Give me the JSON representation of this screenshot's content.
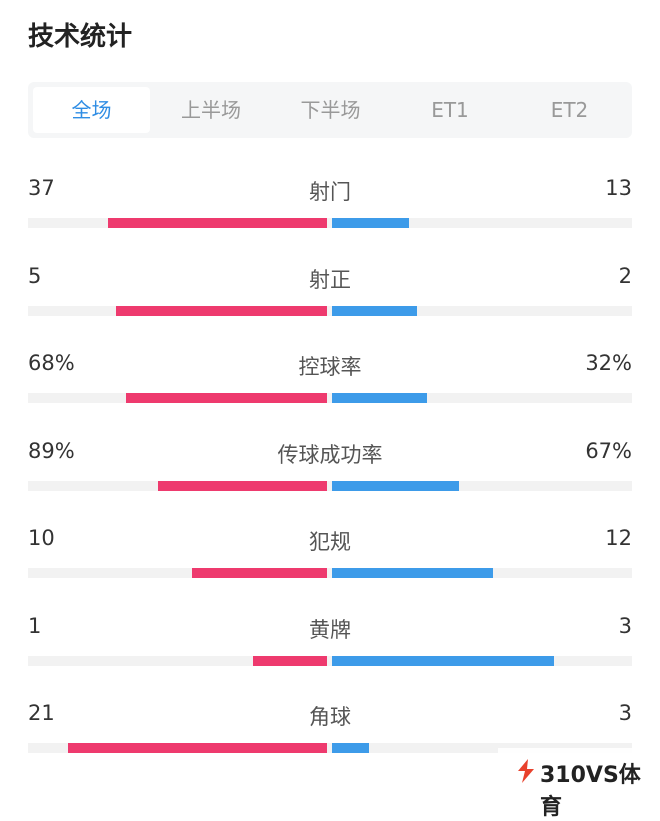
{
  "header": {
    "title": "技术统计"
  },
  "tabs": [
    {
      "label": "全场",
      "active": true
    },
    {
      "label": "上半场",
      "active": false
    },
    {
      "label": "下半场",
      "active": false
    },
    {
      "label": "ET1",
      "active": false
    },
    {
      "label": "ET2",
      "active": false
    }
  ],
  "stats": [
    {
      "name": "射门",
      "home": 37,
      "away": 13
    },
    {
      "name": "射正",
      "home": 5,
      "away": 2
    },
    {
      "name": "控球率",
      "home": 68,
      "away": 32,
      "home_label": "68%",
      "away_label": "32%"
    },
    {
      "name": "传球成功率",
      "home": 89,
      "away": 67,
      "home_label": "89%",
      "away_label": "67%"
    },
    {
      "name": "犯规",
      "home": 10,
      "away": 12
    },
    {
      "name": "黄牌",
      "home": 1,
      "away": 3
    },
    {
      "name": "角球",
      "home": 21,
      "away": 3
    }
  ],
  "watermark": "310VS体育"
}
